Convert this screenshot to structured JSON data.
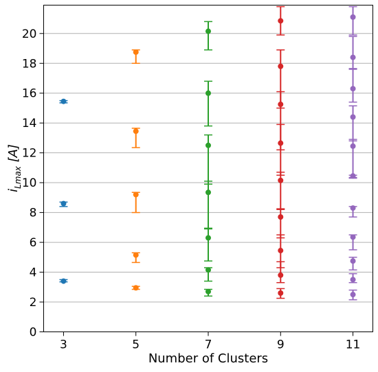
{
  "chart_data": {
    "type": "scatter",
    "xlabel": "Number of Clusters",
    "ylabel_main": "i",
    "ylabel_sub": "Lmax",
    "ylabel_unit": " [A]",
    "xlim": [
      2.45,
      11.55
    ],
    "ylim": [
      0,
      21.9
    ],
    "x_ticks": [
      3,
      5,
      7,
      9,
      11
    ],
    "y_ticks": [
      0,
      2,
      4,
      6,
      8,
      10,
      12,
      14,
      16,
      18,
      20
    ],
    "grid": "horizontal",
    "series": [
      {
        "x": 3,
        "color": "#1f77b4",
        "points": [
          {
            "y": 3.4,
            "lo": 3.35,
            "hi": 3.5
          },
          {
            "y": 8.6,
            "lo": 8.4,
            "hi": 8.7
          },
          {
            "y": 15.45,
            "lo": 15.35,
            "hi": 15.5
          }
        ]
      },
      {
        "x": 5,
        "color": "#ff7f0e",
        "points": [
          {
            "y": 2.95,
            "lo": 2.85,
            "hi": 3.05
          },
          {
            "y": 5.15,
            "lo": 4.65,
            "hi": 5.3
          },
          {
            "y": 9.2,
            "lo": 8.0,
            "hi": 9.35
          },
          {
            "y": 13.45,
            "lo": 12.35,
            "hi": 13.65
          },
          {
            "y": 18.75,
            "lo": 18.0,
            "hi": 18.9
          }
        ]
      },
      {
        "x": 7,
        "color": "#2ca02c",
        "points": [
          {
            "y": 2.7,
            "lo": 2.4,
            "hi": 2.85
          },
          {
            "y": 4.15,
            "lo": 3.4,
            "hi": 4.3
          },
          {
            "y": 6.3,
            "lo": 4.75,
            "hi": 6.95
          },
          {
            "y": 9.35,
            "lo": 6.9,
            "hi": 10.1
          },
          {
            "y": 12.5,
            "lo": 9.9,
            "hi": 13.2
          },
          {
            "y": 16.0,
            "lo": 13.8,
            "hi": 16.8
          },
          {
            "y": 20.15,
            "lo": 18.9,
            "hi": 20.8
          }
        ]
      },
      {
        "x": 9,
        "color": "#d62728",
        "points": [
          {
            "y": 2.6,
            "lo": 2.25,
            "hi": 2.9
          },
          {
            "y": 3.8,
            "lo": 3.3,
            "hi": 4.7
          },
          {
            "y": 5.45,
            "lo": 4.3,
            "hi": 6.5
          },
          {
            "y": 7.7,
            "lo": 6.3,
            "hi": 8.25
          },
          {
            "y": 10.15,
            "lo": 8.2,
            "hi": 10.7
          },
          {
            "y": 12.65,
            "lo": 10.5,
            "hi": 13.9
          },
          {
            "y": 15.25,
            "lo": 12.2,
            "hi": 16.1
          },
          {
            "y": 17.8,
            "lo": 15.0,
            "hi": 18.9
          },
          {
            "y": 20.85,
            "lo": 19.9,
            "hi": 21.8
          }
        ]
      },
      {
        "x": 11,
        "color": "#9467bd",
        "points": [
          {
            "y": 2.5,
            "lo": 2.15,
            "hi": 2.8
          },
          {
            "y": 3.5,
            "lo": 3.3,
            "hi": 3.9
          },
          {
            "y": 4.75,
            "lo": 4.15,
            "hi": 5.0
          },
          {
            "y": 6.35,
            "lo": 5.5,
            "hi": 6.5
          },
          {
            "y": 8.3,
            "lo": 7.7,
            "hi": 8.4
          },
          {
            "y": 10.45,
            "lo": 10.35,
            "hi": 10.5
          },
          {
            "y": 12.45,
            "lo": 10.3,
            "hi": 12.9
          },
          {
            "y": 14.4,
            "lo": 12.8,
            "hi": 15.15
          },
          {
            "y": 16.3,
            "lo": 15.4,
            "hi": 17.65
          },
          {
            "y": 18.4,
            "lo": 17.6,
            "hi": 19.8
          },
          {
            "y": 21.1,
            "lo": 19.9,
            "hi": 21.8
          }
        ]
      }
    ]
  }
}
